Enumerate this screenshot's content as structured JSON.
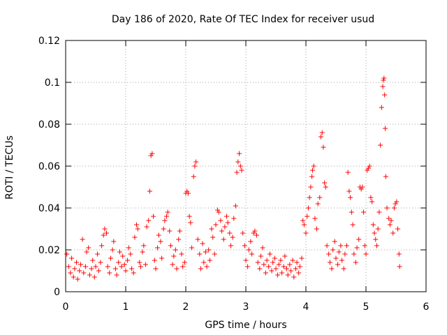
{
  "chart_data": {
    "type": "scatter",
    "title": "Day 186 of 2020, Rate Of TEC Index for receiver usud",
    "xlabel": "GPS time / hours",
    "ylabel": "ROTI / TECUs",
    "xlim": [
      0,
      6
    ],
    "ylim": [
      0,
      0.12
    ],
    "xticks": [
      0,
      1,
      2,
      3,
      4,
      5,
      6
    ],
    "xtick_labels": [
      "0",
      "1",
      "2",
      "3",
      "4",
      "5",
      "6"
    ],
    "yticks": [
      0,
      0.02,
      0.04,
      0.06,
      0.08,
      0.1,
      0.12
    ],
    "ytick_labels": [
      "0",
      "0.02",
      "0.04",
      "0.06",
      "0.08",
      "0.1",
      "0.12"
    ],
    "grid": true,
    "marker": "+",
    "color": "#ff0000",
    "series": [
      {
        "name": "ROTI",
        "points": [
          [
            0.02,
            0.018
          ],
          [
            0.05,
            0.012
          ],
          [
            0.08,
            0.009
          ],
          [
            0.1,
            0.016
          ],
          [
            0.13,
            0.007
          ],
          [
            0.15,
            0.011
          ],
          [
            0.18,
            0.014
          ],
          [
            0.2,
            0.006
          ],
          [
            0.23,
            0.01
          ],
          [
            0.25,
            0.013
          ],
          [
            0.28,
            0.025
          ],
          [
            0.3,
            0.009
          ],
          [
            0.33,
            0.012
          ],
          [
            0.35,
            0.019
          ],
          [
            0.38,
            0.021
          ],
          [
            0.4,
            0.008
          ],
          [
            0.43,
            0.011
          ],
          [
            0.45,
            0.015
          ],
          [
            0.48,
            0.007
          ],
          [
            0.5,
            0.012
          ],
          [
            0.53,
            0.018
          ],
          [
            0.55,
            0.01
          ],
          [
            0.58,
            0.014
          ],
          [
            0.6,
            0.022
          ],
          [
            0.63,
            0.027
          ],
          [
            0.65,
            0.03
          ],
          [
            0.68,
            0.028
          ],
          [
            0.7,
            0.012
          ],
          [
            0.73,
            0.009
          ],
          [
            0.75,
            0.016
          ],
          [
            0.78,
            0.02
          ],
          [
            0.8,
            0.024
          ],
          [
            0.83,
            0.011
          ],
          [
            0.85,
            0.008
          ],
          [
            0.88,
            0.014
          ],
          [
            0.9,
            0.019
          ],
          [
            0.93,
            0.012
          ],
          [
            0.95,
            0.017
          ],
          [
            0.98,
            0.013
          ],
          [
            1.0,
            0.01
          ],
          [
            1.03,
            0.015
          ],
          [
            1.05,
            0.021
          ],
          [
            1.08,
            0.018
          ],
          [
            1.1,
            0.011
          ],
          [
            1.13,
            0.009
          ],
          [
            1.15,
            0.026
          ],
          [
            1.18,
            0.032
          ],
          [
            1.2,
            0.03
          ],
          [
            1.23,
            0.014
          ],
          [
            1.25,
            0.012
          ],
          [
            1.28,
            0.019
          ],
          [
            1.3,
            0.022
          ],
          [
            1.33,
            0.013
          ],
          [
            1.35,
            0.031
          ],
          [
            1.38,
            0.034
          ],
          [
            1.4,
            0.048
          ],
          [
            1.42,
            0.065
          ],
          [
            1.44,
            0.066
          ],
          [
            1.46,
            0.036
          ],
          [
            1.48,
            0.015
          ],
          [
            1.5,
            0.011
          ],
          [
            1.53,
            0.021
          ],
          [
            1.55,
            0.027
          ],
          [
            1.58,
            0.024
          ],
          [
            1.6,
            0.016
          ],
          [
            1.63,
            0.03
          ],
          [
            1.65,
            0.034
          ],
          [
            1.68,
            0.036
          ],
          [
            1.7,
            0.038
          ],
          [
            1.73,
            0.029
          ],
          [
            1.75,
            0.022
          ],
          [
            1.78,
            0.013
          ],
          [
            1.8,
            0.017
          ],
          [
            1.83,
            0.02
          ],
          [
            1.85,
            0.011
          ],
          [
            1.88,
            0.025
          ],
          [
            1.9,
            0.029
          ],
          [
            1.93,
            0.018
          ],
          [
            1.95,
            0.012
          ],
          [
            1.98,
            0.014
          ],
          [
            2.0,
            0.047
          ],
          [
            2.02,
            0.048
          ],
          [
            2.04,
            0.047
          ],
          [
            2.06,
            0.036
          ],
          [
            2.08,
            0.033
          ],
          [
            2.1,
            0.021
          ],
          [
            2.13,
            0.055
          ],
          [
            2.15,
            0.06
          ],
          [
            2.17,
            0.062
          ],
          [
            2.2,
            0.025
          ],
          [
            2.23,
            0.018
          ],
          [
            2.25,
            0.011
          ],
          [
            2.28,
            0.023
          ],
          [
            2.3,
            0.014
          ],
          [
            2.33,
            0.019
          ],
          [
            2.35,
            0.012
          ],
          [
            2.38,
            0.02
          ],
          [
            2.4,
            0.015
          ],
          [
            2.43,
            0.03
          ],
          [
            2.45,
            0.026
          ],
          [
            2.48,
            0.018
          ],
          [
            2.5,
            0.032
          ],
          [
            2.53,
            0.039
          ],
          [
            2.55,
            0.038
          ],
          [
            2.58,
            0.034
          ],
          [
            2.6,
            0.029
          ],
          [
            2.63,
            0.025
          ],
          [
            2.65,
            0.031
          ],
          [
            2.68,
            0.036
          ],
          [
            2.7,
            0.033
          ],
          [
            2.73,
            0.028
          ],
          [
            2.75,
            0.022
          ],
          [
            2.78,
            0.026
          ],
          [
            2.8,
            0.035
          ],
          [
            2.83,
            0.041
          ],
          [
            2.85,
            0.057
          ],
          [
            2.87,
            0.062
          ],
          [
            2.89,
            0.066
          ],
          [
            2.91,
            0.06
          ],
          [
            2.93,
            0.058
          ],
          [
            2.95,
            0.028
          ],
          [
            2.98,
            0.022
          ],
          [
            3.0,
            0.015
          ],
          [
            3.03,
            0.012
          ],
          [
            3.05,
            0.02
          ],
          [
            3.08,
            0.024
          ],
          [
            3.1,
            0.018
          ],
          [
            3.13,
            0.028
          ],
          [
            3.15,
            0.029
          ],
          [
            3.18,
            0.027
          ],
          [
            3.2,
            0.014
          ],
          [
            3.23,
            0.011
          ],
          [
            3.25,
            0.017
          ],
          [
            3.28,
            0.021
          ],
          [
            3.3,
            0.013
          ],
          [
            3.33,
            0.009
          ],
          [
            3.35,
            0.015
          ],
          [
            3.38,
            0.012
          ],
          [
            3.4,
            0.018
          ],
          [
            3.43,
            0.01
          ],
          [
            3.45,
            0.014
          ],
          [
            3.48,
            0.016
          ],
          [
            3.5,
            0.011
          ],
          [
            3.53,
            0.008
          ],
          [
            3.55,
            0.013
          ],
          [
            3.58,
            0.015
          ],
          [
            3.6,
            0.009
          ],
          [
            3.63,
            0.012
          ],
          [
            3.65,
            0.017
          ],
          [
            3.68,
            0.011
          ],
          [
            3.7,
            0.008
          ],
          [
            3.73,
            0.013
          ],
          [
            3.75,
            0.01
          ],
          [
            3.78,
            0.015
          ],
          [
            3.8,
            0.007
          ],
          [
            3.83,
            0.011
          ],
          [
            3.85,
            0.014
          ],
          [
            3.88,
            0.009
          ],
          [
            3.9,
            0.012
          ],
          [
            3.93,
            0.016
          ],
          [
            3.95,
            0.034
          ],
          [
            3.97,
            0.032
          ],
          [
            4.0,
            0.028
          ],
          [
            4.02,
            0.036
          ],
          [
            4.04,
            0.04
          ],
          [
            4.06,
            0.045
          ],
          [
            4.08,
            0.05
          ],
          [
            4.1,
            0.055
          ],
          [
            4.11,
            0.058
          ],
          [
            4.13,
            0.06
          ],
          [
            4.15,
            0.035
          ],
          [
            4.18,
            0.03
          ],
          [
            4.2,
            0.042
          ],
          [
            4.23,
            0.045
          ],
          [
            4.25,
            0.074
          ],
          [
            4.27,
            0.076
          ],
          [
            4.29,
            0.069
          ],
          [
            4.31,
            0.052
          ],
          [
            4.33,
            0.05
          ],
          [
            4.35,
            0.022
          ],
          [
            4.38,
            0.018
          ],
          [
            4.4,
            0.014
          ],
          [
            4.43,
            0.011
          ],
          [
            4.45,
            0.02
          ],
          [
            4.48,
            0.024
          ],
          [
            4.5,
            0.016
          ],
          [
            4.53,
            0.013
          ],
          [
            4.55,
            0.019
          ],
          [
            4.58,
            0.022
          ],
          [
            4.6,
            0.015
          ],
          [
            4.63,
            0.011
          ],
          [
            4.65,
            0.018
          ],
          [
            4.68,
            0.022
          ],
          [
            4.7,
            0.057
          ],
          [
            4.72,
            0.048
          ],
          [
            4.74,
            0.045
          ],
          [
            4.76,
            0.038
          ],
          [
            4.78,
            0.032
          ],
          [
            4.8,
            0.018
          ],
          [
            4.83,
            0.014
          ],
          [
            4.85,
            0.021
          ],
          [
            4.88,
            0.025
          ],
          [
            4.9,
            0.05
          ],
          [
            4.92,
            0.049
          ],
          [
            4.94,
            0.05
          ],
          [
            4.96,
            0.038
          ],
          [
            4.98,
            0.022
          ],
          [
            5.0,
            0.018
          ],
          [
            5.02,
            0.058
          ],
          [
            5.04,
            0.059
          ],
          [
            5.06,
            0.06
          ],
          [
            5.08,
            0.045
          ],
          [
            5.1,
            0.043
          ],
          [
            5.12,
            0.032
          ],
          [
            5.14,
            0.028
          ],
          [
            5.16,
            0.025
          ],
          [
            5.18,
            0.022
          ],
          [
            5.2,
            0.03
          ],
          [
            5.22,
            0.038
          ],
          [
            5.24,
            0.07
          ],
          [
            5.26,
            0.088
          ],
          [
            5.28,
            0.098
          ],
          [
            5.29,
            0.101
          ],
          [
            5.3,
            0.102
          ],
          [
            5.31,
            0.094
          ],
          [
            5.32,
            0.078
          ],
          [
            5.33,
            0.055
          ],
          [
            5.35,
            0.04
          ],
          [
            5.38,
            0.035
          ],
          [
            5.4,
            0.032
          ],
          [
            5.42,
            0.034
          ],
          [
            5.45,
            0.028
          ],
          [
            5.47,
            0.04
          ],
          [
            5.49,
            0.042
          ],
          [
            5.51,
            0.043
          ],
          [
            5.53,
            0.03
          ],
          [
            5.55,
            0.018
          ],
          [
            5.56,
            0.012
          ]
        ]
      }
    ]
  }
}
